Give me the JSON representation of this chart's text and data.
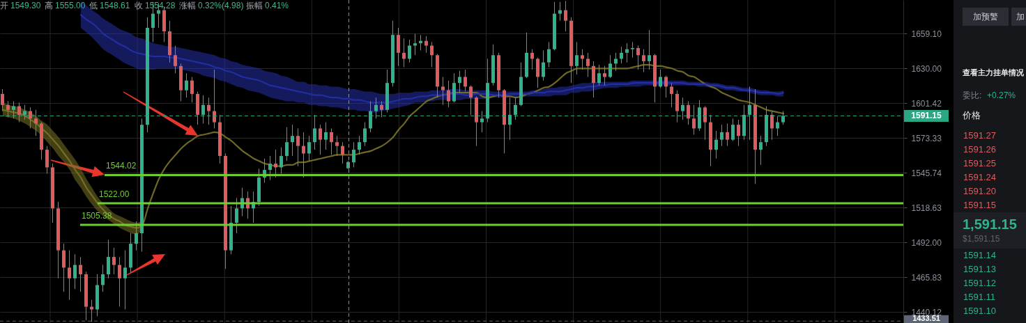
{
  "chart_data": {
    "type": "candlestick",
    "categories": [
      null,
      null,
      null,
      null,
      null,
      null,
      null,
      null,
      null,
      null,
      null,
      null,
      null,
      null,
      null,
      null,
      null,
      null,
      null,
      null,
      null,
      null,
      null,
      null,
      null,
      null,
      null,
      null,
      null,
      null,
      null,
      null,
      null,
      null,
      null,
      null,
      null,
      null,
      null,
      null,
      null,
      null,
      null,
      null,
      null,
      null,
      null,
      null,
      null,
      null,
      null,
      null,
      null,
      null,
      null,
      null,
      null,
      null,
      null,
      null,
      null,
      null,
      null,
      null,
      null,
      null,
      null,
      null,
      null,
      null,
      null,
      null,
      null,
      null,
      null,
      null,
      null,
      null,
      null,
      null,
      null,
      null,
      null,
      null,
      null,
      null,
      null,
      null,
      null,
      null,
      null,
      null,
      null,
      null,
      null,
      null,
      null,
      null,
      null,
      null,
      null,
      null,
      null,
      null,
      null,
      null,
      null,
      null,
      null,
      null,
      null,
      null,
      null,
      null,
      null,
      null,
      null,
      null,
      null,
      null,
      null,
      null,
      null,
      null,
      null,
      null,
      null,
      null,
      null,
      null,
      null,
      null,
      null,
      null,
      null,
      null,
      null,
      null,
      null,
      null,
      null,
      null,
      null,
      null,
      null,
      null,
      null,
      null,
      null,
      null,
      null,
      null,
      null,
      null,
      null,
      null,
      null,
      null,
      null,
      null,
      null,
      null
    ],
    "ohlc": [
      [
        1609,
        1613,
        1595,
        1600
      ],
      [
        1600,
        1603,
        1590,
        1596
      ],
      [
        1596,
        1603,
        1589,
        1599
      ],
      [
        1599,
        1602,
        1586,
        1592
      ],
      [
        1592,
        1600,
        1588,
        1595
      ],
      [
        1595,
        1598,
        1581,
        1589
      ],
      [
        1589,
        1596,
        1575,
        1585
      ],
      [
        1585,
        1586,
        1556,
        1564
      ],
      [
        1564,
        1567,
        1545,
        1550
      ],
      [
        1550,
        1553,
        1507,
        1518
      ],
      [
        1518,
        1523,
        1465,
        1486
      ],
      [
        1486,
        1491,
        1455,
        1473
      ],
      [
        1473,
        1486,
        1449,
        1465
      ],
      [
        1465,
        1483,
        1457,
        1475
      ],
      [
        1475,
        1481,
        1455,
        1468
      ],
      [
        1468,
        1470,
        1434,
        1444
      ],
      [
        1444,
        1449,
        1433,
        1442
      ],
      [
        1442,
        1468,
        1437,
        1460
      ],
      [
        1460,
        1475,
        1455,
        1468
      ],
      [
        1468,
        1494,
        1465,
        1481
      ],
      [
        1481,
        1488,
        1468,
        1475
      ],
      [
        1475,
        1481,
        1444,
        1465
      ],
      [
        1465,
        1486,
        1442,
        1473
      ],
      [
        1473,
        1499,
        1469,
        1491
      ],
      [
        1491,
        1508,
        1486,
        1499
      ],
      [
        1499,
        1589,
        1485,
        1584
      ],
      [
        1584,
        1673,
        1578,
        1664
      ],
      [
        1664,
        1686,
        1652,
        1676
      ],
      [
        1676,
        1685,
        1664,
        1679
      ],
      [
        1679,
        1682,
        1652,
        1661
      ],
      [
        1661,
        1670,
        1635,
        1641
      ],
      [
        1641,
        1649,
        1626,
        1632
      ],
      [
        1632,
        1634,
        1603,
        1612
      ],
      [
        1612,
        1626,
        1606,
        1620
      ],
      [
        1620,
        1623,
        1602,
        1609
      ],
      [
        1609,
        1611,
        1584,
        1592
      ],
      [
        1592,
        1608,
        1585,
        1600
      ],
      [
        1600,
        1606,
        1584,
        1595
      ],
      [
        1595,
        1629,
        1581,
        1586
      ],
      [
        1586,
        1592,
        1553,
        1559
      ],
      [
        1559,
        1561,
        1472,
        1486
      ],
      [
        1486,
        1520,
        1483,
        1507
      ],
      [
        1507,
        1526,
        1499,
        1518
      ],
      [
        1518,
        1534,
        1512,
        1526
      ],
      [
        1526,
        1531,
        1510,
        1518
      ],
      [
        1518,
        1531,
        1507,
        1523
      ],
      [
        1523,
        1549,
        1520,
        1542
      ],
      [
        1542,
        1557,
        1538,
        1548
      ],
      [
        1548,
        1559,
        1540,
        1553
      ],
      [
        1553,
        1564,
        1542,
        1550
      ],
      [
        1550,
        1566,
        1545,
        1559
      ],
      [
        1559,
        1582,
        1555,
        1570
      ],
      [
        1570,
        1584,
        1559,
        1575
      ],
      [
        1575,
        1581,
        1551,
        1567
      ],
      [
        1567,
        1578,
        1542,
        1561
      ],
      [
        1561,
        1575,
        1555,
        1570
      ],
      [
        1570,
        1592,
        1564,
        1581
      ],
      [
        1581,
        1584,
        1560,
        1572
      ],
      [
        1572,
        1586,
        1564,
        1578
      ],
      [
        1578,
        1581,
        1560,
        1570
      ],
      [
        1570,
        1575,
        1559,
        1567
      ],
      [
        1567,
        1570,
        1553,
        1560
      ],
      [
        1549.3,
        1555.0,
        1548.61,
        1554.28
      ],
      [
        1554,
        1570,
        1550,
        1564
      ],
      [
        1564,
        1575,
        1560,
        1570
      ],
      [
        1570,
        1586,
        1567,
        1581
      ],
      [
        1581,
        1603,
        1578,
        1595
      ],
      [
        1595,
        1606,
        1589,
        1600
      ],
      [
        1600,
        1603,
        1590,
        1596
      ],
      [
        1596,
        1629,
        1594,
        1618
      ],
      [
        1618,
        1670,
        1615,
        1658
      ],
      [
        1658,
        1664,
        1632,
        1643
      ],
      [
        1643,
        1655,
        1631,
        1638
      ],
      [
        1638,
        1654,
        1635,
        1649
      ],
      [
        1649,
        1659,
        1641,
        1651
      ],
      [
        1651,
        1658,
        1645,
        1653
      ],
      [
        1653,
        1657,
        1643,
        1649
      ],
      [
        1649,
        1652,
        1631,
        1641
      ],
      [
        1641,
        1642,
        1606,
        1615
      ],
      [
        1615,
        1623,
        1600,
        1612
      ],
      [
        1612,
        1620,
        1598,
        1603
      ],
      [
        1603,
        1626,
        1602,
        1618
      ],
      [
        1618,
        1628,
        1610,
        1623
      ],
      [
        1623,
        1629,
        1611,
        1615
      ],
      [
        1615,
        1616,
        1592,
        1606
      ],
      [
        1606,
        1607,
        1567,
        1586
      ],
      [
        1586,
        1595,
        1578,
        1589
      ],
      [
        1589,
        1638,
        1586,
        1618
      ],
      [
        1618,
        1650,
        1616,
        1641
      ],
      [
        1641,
        1643,
        1606,
        1612
      ],
      [
        1612,
        1613,
        1561,
        1584
      ],
      [
        1584,
        1606,
        1572,
        1592
      ],
      [
        1592,
        1606,
        1588,
        1600
      ],
      [
        1600,
        1635,
        1599,
        1623
      ],
      [
        1623,
        1660,
        1622,
        1643
      ],
      [
        1643,
        1646,
        1629,
        1638
      ],
      [
        1638,
        1639,
        1614,
        1623
      ],
      [
        1623,
        1645,
        1620,
        1635
      ],
      [
        1635,
        1652,
        1631,
        1646
      ],
      [
        1646,
        1686,
        1645,
        1676
      ],
      [
        1676,
        1686,
        1670,
        1679
      ],
      [
        1679,
        1687,
        1661,
        1670
      ],
      [
        1670,
        1673,
        1618,
        1632
      ],
      [
        1632,
        1652,
        1625,
        1641
      ],
      [
        1641,
        1646,
        1629,
        1638
      ],
      [
        1638,
        1643,
        1623,
        1632
      ],
      [
        1632,
        1636,
        1606,
        1618
      ],
      [
        1618,
        1633,
        1616,
        1626
      ],
      [
        1626,
        1632,
        1616,
        1623
      ],
      [
        1623,
        1641,
        1622,
        1634
      ],
      [
        1634,
        1643,
        1628,
        1638
      ],
      [
        1638,
        1648,
        1634,
        1643
      ],
      [
        1643,
        1651,
        1635,
        1646
      ],
      [
        1646,
        1652,
        1639,
        1647
      ],
      [
        1647,
        1649,
        1629,
        1641
      ],
      [
        1641,
        1646,
        1627,
        1636
      ],
      [
        1636,
        1662,
        1629,
        1641
      ],
      [
        1641,
        1642,
        1602,
        1615
      ],
      [
        1615,
        1629,
        1614,
        1623
      ],
      [
        1623,
        1624,
        1606,
        1615
      ],
      [
        1615,
        1618,
        1598,
        1609
      ],
      [
        1609,
        1612,
        1586,
        1595
      ],
      [
        1595,
        1606,
        1588,
        1600
      ],
      [
        1600,
        1603,
        1584,
        1589
      ],
      [
        1589,
        1600,
        1576,
        1581
      ],
      [
        1581,
        1604,
        1579,
        1598
      ],
      [
        1598,
        1599,
        1572,
        1586
      ],
      [
        1586,
        1592,
        1551,
        1564
      ],
      [
        1564,
        1579,
        1557,
        1572
      ],
      [
        1572,
        1584,
        1567,
        1578
      ],
      [
        1578,
        1585,
        1567,
        1572
      ],
      [
        1572,
        1589,
        1571,
        1584
      ],
      [
        1584,
        1588,
        1567,
        1575
      ],
      [
        1575,
        1600,
        1572,
        1592
      ],
      [
        1592,
        1615,
        1572,
        1600
      ],
      [
        1600,
        1613,
        1537,
        1564
      ],
      [
        1564,
        1575,
        1552,
        1570
      ],
      [
        1570,
        1599,
        1567,
        1592
      ],
      [
        1592,
        1595,
        1572,
        1581
      ],
      [
        1581,
        1591,
        1575,
        1586
      ],
      [
        1586,
        1595,
        1584,
        1591.15
      ],
      null,
      null,
      null,
      null,
      null,
      null,
      null,
      null,
      null,
      null,
      null,
      null,
      null,
      null,
      null,
      null,
      null,
      null,
      null,
      null,
      null
    ],
    "colors": [
      "#de5b5e",
      "#de5b5e",
      "#2eb38c",
      "#de5b5e",
      "#2eb38c",
      "#de5b5e",
      "#de5b5e",
      "#de5b5e",
      "#de5b5e",
      "#de5b5e",
      "#de5b5e",
      "#de5b5e",
      "#de5b5e",
      "#2eb38c",
      "#de5b5e",
      "#de5b5e",
      "#de5b5e",
      "#2eb38c",
      "#2eb38c",
      "#2eb38c",
      "#de5b5e",
      "#de5b5e",
      "#2eb38c",
      "#2eb38c",
      "#2eb38c",
      "#2eb38c",
      "#2eb38c",
      "#2eb38c",
      "#2eb38c",
      "#de5b5e",
      "#de5b5e",
      "#de5b5e",
      "#de5b5e",
      "#2eb38c",
      "#de5b5e",
      "#de5b5e",
      "#2eb38c",
      "#de5b5e",
      "#de5b5e",
      "#de5b5e",
      "#de5b5e",
      "#2eb38c",
      "#2eb38c",
      "#2eb38c",
      "#de5b5e",
      "#2eb38c",
      "#2eb38c",
      "#2eb38c",
      "#2eb38c",
      "#de5b5e",
      "#2eb38c",
      "#2eb38c",
      "#2eb38c",
      "#de5b5e",
      "#de5b5e",
      "#2eb38c",
      "#2eb38c",
      "#de5b5e",
      "#2eb38c",
      "#de5b5e",
      "#de5b5e",
      "#de5b5e",
      "#2eb38c",
      "#2eb38c",
      "#2eb38c",
      "#2eb38c",
      "#2eb38c",
      "#2eb38c",
      "#de5b5e",
      "#2eb38c",
      "#2eb38c",
      "#de5b5e",
      "#de5b5e",
      "#2eb38c",
      "#2eb38c",
      "#2eb38c",
      "#de5b5e",
      "#de5b5e",
      "#de5b5e",
      "#de5b5e",
      "#de5b5e",
      "#2eb38c",
      "#2eb38c",
      "#de5b5e",
      "#de5b5e",
      "#de5b5e",
      "#2eb38c",
      "#2eb38c",
      "#2eb38c",
      "#de5b5e",
      "#de5b5e",
      "#2eb38c",
      "#2eb38c",
      "#2eb38c",
      "#2eb38c",
      "#de5b5e",
      "#de5b5e",
      "#2eb38c",
      "#2eb38c",
      "#2eb38c",
      "#2eb38c",
      "#de5b5e",
      "#de5b5e",
      "#2eb38c",
      "#de5b5e",
      "#de5b5e",
      "#de5b5e",
      "#2eb38c",
      "#de5b5e",
      "#2eb38c",
      "#2eb38c",
      "#2eb38c",
      "#2eb38c",
      "#2eb38c",
      "#de5b5e",
      "#de5b5e",
      "#2eb38c",
      "#de5b5e",
      "#2eb38c",
      "#de5b5e",
      "#de5b5e",
      "#de5b5e",
      "#2eb38c",
      "#de5b5e",
      "#de5b5e",
      "#2eb38c",
      "#de5b5e",
      "#de5b5e",
      "#2eb38c",
      "#2eb38c",
      "#de5b5e",
      "#2eb38c",
      "#de5b5e",
      "#2eb38c",
      "#2eb38c",
      "#de5b5e",
      "#2eb38c",
      "#2eb38c",
      "#de5b5e",
      "#2eb38c",
      "#2eb38c",
      null,
      null,
      null,
      null,
      null,
      null,
      null,
      null,
      null,
      null,
      null,
      null,
      null,
      null,
      null,
      null,
      null,
      null,
      null,
      null,
      null
    ],
    "series": [
      {
        "type": "line",
        "color": "#7a7326",
        "values": [
          1596,
          1595,
          1594,
          1593,
          1591,
          1588,
          1585,
          1581,
          1577,
          1572,
          1567,
          1561,
          1555,
          1548,
          1542,
          1534,
          1528,
          1522,
          1517,
          1513,
          1510,
          1508,
          1505,
          1504,
          1503,
          1505,
          1518,
          1530,
          1541,
          1549,
          1555,
          1560,
          1565,
          1569,
          1572,
          1575,
          1576,
          1577,
          1578,
          1577,
          1574,
          1571,
          1567,
          1563,
          1560,
          1557,
          1555,
          1553,
          1552,
          1551,
          1551,
          1552,
          1552,
          1554,
          1554,
          1555,
          1556,
          1557,
          1558,
          1559,
          1560,
          1560,
          1560,
          1560,
          1561,
          1562,
          1563,
          1565,
          1567,
          1570,
          1574,
          1580,
          1585,
          1591,
          1595,
          1599,
          1603,
          1605,
          1607,
          null,
          1609,
          1610,
          1610,
          1610,
          1610,
          1610,
          1607,
          1606,
          1607,
          1608,
          1607,
          1607,
          1606,
          1607,
          1609,
          1610,
          1612,
          1614,
          1615,
          1618,
          1622,
          1626,
          1628,
          1630,
          1630,
          1630,
          1630,
          1630,
          1630,
          1630,
          1630,
          1630,
          1630,
          1631,
          1632,
          1633,
          1633,
          1632,
          1632,
          1631,
          1630,
          1628,
          1627,
          1624,
          1623,
          1620,
          1617,
          1615,
          1613,
          1610,
          1608,
          1606,
          1604,
          1603,
          1602,
          1600,
          1598,
          1596,
          1595,
          1594,
          1593,
          null,
          null,
          null,
          null,
          null,
          null,
          null,
          null,
          null,
          null,
          null,
          null,
          null,
          null,
          null,
          null,
          null,
          null,
          null,
          null,
          null
        ],
        "upper": [
          1602,
          1600,
          1599,
          1598,
          1596,
          1594,
          1591,
          1587,
          1584,
          1579,
          1574,
          1568,
          1562,
          1556,
          1549,
          1541,
          1534,
          1527,
          1522,
          1518,
          1514,
          1512,
          1510,
          1508,
          1507,
          1508,
          null,
          null,
          null,
          null,
          null,
          null,
          null,
          null,
          null,
          null,
          null,
          null,
          null,
          null,
          null,
          null,
          null,
          null,
          null,
          null,
          null,
          null,
          null,
          null,
          null,
          null,
          null,
          null,
          null,
          null,
          null,
          null,
          null,
          null,
          null,
          null,
          null,
          null,
          null,
          null,
          null,
          null,
          null,
          null,
          null,
          null,
          null,
          null,
          null,
          null,
          null,
          null,
          null,
          null,
          null,
          null,
          null,
          null,
          null,
          null,
          null,
          null,
          null,
          null,
          null,
          null,
          null,
          null,
          null,
          null,
          null,
          null,
          null,
          null,
          null,
          null,
          null,
          null,
          null,
          null,
          null,
          null,
          null,
          null,
          null,
          null,
          null,
          null,
          null,
          null,
          null,
          null,
          null,
          null,
          null,
          null,
          null,
          null,
          null,
          null,
          null,
          null,
          null,
          null,
          null,
          null,
          null,
          null,
          null,
          null,
          null,
          null,
          null,
          null,
          null,
          null,
          null,
          null,
          null,
          null,
          null,
          null,
          null,
          null,
          null,
          null,
          null,
          null,
          null,
          null,
          null,
          null,
          null,
          null,
          null,
          null
        ],
        "lower": [
          1591,
          1590,
          1589,
          1587,
          1585,
          1582,
          1579,
          1575,
          1570,
          1565,
          1559,
          1554,
          1548,
          1540,
          1534,
          1527,
          1521,
          1516,
          1512,
          1509,
          1506,
          1503,
          1501,
          1499,
          1498,
          1502,
          null,
          null,
          null,
          null,
          null,
          null,
          null,
          null,
          null,
          null,
          null,
          null,
          null,
          null,
          null,
          null,
          null,
          null,
          null,
          null,
          null,
          null,
          null,
          null,
          null,
          null,
          null,
          null,
          null,
          null,
          null,
          null,
          null,
          null,
          null,
          null,
          null,
          null,
          null,
          null,
          null,
          null,
          null,
          null,
          null,
          null,
          null,
          null,
          null,
          null,
          null,
          null,
          null,
          null,
          null,
          null,
          null,
          null,
          null,
          null,
          null,
          null,
          null,
          null,
          null,
          null,
          null,
          null,
          null,
          null,
          null,
          null,
          null,
          null,
          null,
          null,
          null,
          null,
          null,
          null,
          null,
          null,
          null,
          null,
          null,
          null,
          null,
          null,
          null,
          null,
          null,
          null,
          null,
          null,
          null,
          null,
          null,
          null,
          null,
          null,
          null,
          null,
          null,
          null,
          null,
          null,
          null,
          null,
          null,
          null,
          null,
          null,
          null,
          null,
          null,
          null,
          null,
          null,
          null,
          null,
          null,
          null,
          null,
          null,
          null,
          null,
          null,
          null,
          null,
          null,
          null,
          null,
          null,
          null,
          null,
          null
        ]
      },
      {
        "type": "line",
        "color": "#2430a8",
        "values": [
          null,
          null,
          null,
          null,
          null,
          null,
          null,
          null,
          null,
          null,
          null,
          null,
          null,
          null,
          1675,
          1671,
          1668,
          1664,
          1659,
          1656,
          1653,
          1650,
          1648,
          1645,
          1643,
          1642,
          1641,
          1640,
          1640,
          1640,
          1639,
          1639,
          1638,
          1637,
          1636,
          1635,
          1634,
          1633,
          1631,
          1630,
          1628,
          1627,
          1625,
          1623,
          1622,
          1621,
          1620,
          1618,
          1616,
          1615,
          1614,
          1613,
          1612,
          1611,
          1610,
          1609,
          1608,
          1608,
          1607,
          1606,
          1606,
          1605,
          1605,
          1604,
          1604,
          1603,
          1602,
          1602,
          1602,
          1602,
          1603,
          1604,
          1605,
          1605,
          1606,
          1607,
          1607,
          1608,
          1608,
          1608,
          1609,
          1609,
          1609,
          1608,
          1608,
          1609,
          1609,
          1609,
          1608,
          1608,
          1608,
          1609,
          1609,
          1609,
          1609,
          1610,
          1610,
          1610,
          1611,
          1611,
          1611,
          1612,
          1613,
          1614,
          1614,
          1615,
          1615,
          1616,
          1616,
          1617,
          1617,
          1617,
          1617,
          1618,
          1618,
          1618,
          1618,
          1618,
          1618,
          1618,
          1618,
          1618,
          1618,
          1617,
          1617,
          1617,
          1617,
          1616,
          1616,
          1615,
          1614,
          1614,
          1613,
          1612,
          1612,
          1611,
          1610,
          1610,
          1610,
          1609,
          1610,
          null,
          null,
          null,
          null,
          null,
          null,
          null,
          null,
          null,
          null,
          null,
          null,
          null,
          null,
          null,
          null,
          null,
          null,
          null,
          null,
          null
        ],
        "upper": [
          null,
          null,
          null,
          null,
          null,
          null,
          null,
          null,
          null,
          null,
          null,
          null,
          null,
          null,
          1686,
          1683,
          1679,
          1676,
          1672,
          1669,
          1666,
          1663,
          1661,
          1659,
          1656,
          1655,
          1653,
          1651,
          1650,
          1649,
          1648,
          1648,
          1647,
          1646,
          1645,
          1644,
          1643,
          1642,
          1641,
          1639,
          1638,
          1636,
          1635,
          1633,
          1632,
          1631,
          1630,
          1628,
          1627,
          1626,
          1624,
          1623,
          1621,
          1619,
          1619,
          1617,
          1617,
          1616,
          1616,
          1615,
          1615,
          1614,
          1613,
          1613,
          1612,
          1611,
          1611,
          1610,
          1609,
          1609,
          1609,
          1610,
          1610,
          1610,
          1611,
          1611,
          1611,
          1612,
          1612,
          1612,
          1613,
          1613,
          1613,
          1612,
          1612,
          1612,
          1612,
          1612,
          1611,
          1611,
          1611,
          1611,
          1611,
          1611,
          1611,
          1612,
          1612,
          1613,
          1614,
          1614,
          1615,
          1615,
          1616,
          1617,
          1618,
          1618,
          1619,
          1619,
          1619,
          1619,
          1619,
          1619,
          1619,
          1620,
          1620,
          1620,
          1620,
          1620,
          1620,
          1620,
          1620,
          1620,
          1620,
          1619,
          1619,
          1619,
          1619,
          1618,
          1618,
          1617,
          1616,
          1616,
          1615,
          1614,
          1614,
          1613,
          1612,
          1612,
          1611,
          1611,
          1612,
          null,
          null,
          null,
          null,
          null,
          null,
          null,
          null,
          null,
          null,
          null,
          null,
          null,
          null,
          null,
          null,
          null,
          null,
          null,
          null,
          null
        ],
        "lower": [
          null,
          null,
          null,
          null,
          null,
          null,
          null,
          null,
          null,
          null,
          null,
          null,
          null,
          null,
          1664,
          1660,
          1656,
          1651,
          1646,
          1643,
          1640,
          1637,
          1634,
          1632,
          1630,
          1629,
          1629,
          1629,
          1630,
          1630,
          1630,
          1630,
          1629,
          1628,
          1627,
          1626,
          1624,
          1623,
          1622,
          1620,
          1619,
          1617,
          1615,
          1614,
          1612,
          1611,
          1610,
          1608,
          1606,
          1605,
          1604,
          1603,
          1603,
          1602,
          1602,
          1600,
          1600,
          1599,
          1599,
          1598,
          1598,
          1597,
          1596,
          1596,
          1595,
          1595,
          1594,
          1594,
          1595,
          1596,
          1597,
          1598,
          1599,
          1600,
          1602,
          1602,
          1603,
          1603,
          1604,
          1604,
          1604,
          1604,
          1604,
          1605,
          1605,
          1605,
          1605,
          1605,
          1606,
          1606,
          1606,
          1606,
          1606,
          1606,
          1607,
          1607,
          1607,
          1607,
          1607,
          1608,
          1608,
          1608,
          1610,
          1610,
          1611,
          1611,
          1612,
          1613,
          1614,
          1614,
          1614,
          1615,
          1615,
          1615,
          1615,
          1616,
          1616,
          1616,
          1616,
          1616,
          1616,
          1616,
          1616,
          1616,
          1616,
          1615,
          1615,
          1614,
          1614,
          1613,
          1612,
          1612,
          1611,
          1611,
          1610,
          1609,
          1608,
          1608,
          1608,
          1607,
          1607,
          null,
          null,
          null,
          null,
          null,
          null,
          null,
          null,
          null,
          null,
          null,
          null,
          null,
          null,
          null,
          null,
          null,
          null,
          null,
          null,
          null
        ]
      }
    ],
    "ylim": [
      1432.1,
      1687.7
    ],
    "yticks": [
      {
        "value": 1659.1,
        "label": "1659.10"
      },
      {
        "value": 1630,
        "label": "1630.00"
      },
      1601.42,
      1573.33,
      1545.74,
      1518.63,
      {
        "value": 1492,
        "label": "1492.00"
      },
      1465.83,
      1440.12
    ],
    "log": true,
    "grid": true,
    "tick_labels": "y",
    "ref_lines": [
      {
        "axis": "y",
        "value": 1544.02,
        "label": "1544.02",
        "color": "#6ccf2e"
      },
      {
        "axis": "y",
        "value": 1522.0,
        "label": "1522.00",
        "color": "#6ccf2e"
      },
      {
        "axis": "y",
        "value": 1505.38,
        "label": "1505.38",
        "color": "#6ccf2e"
      },
      {
        "axis": "y",
        "value": 1591.15,
        "label": "1591.15",
        "color": "#2aa683",
        "line_style": "dashed"
      },
      {
        "axis": "y",
        "value": 1433.51,
        "label": "1433.51",
        "color": "#5d6574",
        "line_style": "dashed"
      }
    ],
    "annotations": [
      "开",
      "1549.30",
      "高",
      "1555.00",
      "低",
      "1548.61",
      "收",
      "1554.28",
      "涨幅",
      "0.32%(4.98)",
      "振幅",
      "0.41%",
      "加预警",
      "加",
      "查看主力挂单情况",
      "委比:",
      "+0.27%",
      "价格",
      "1591.27",
      "1591.26",
      "1591.25",
      "1591.24",
      "1591.20",
      "1591.15",
      "1,591.15",
      "$1,591.15",
      "1591.14",
      "1591.13",
      "1591.12",
      "1591.11",
      "1591.10"
    ]
  }
}
